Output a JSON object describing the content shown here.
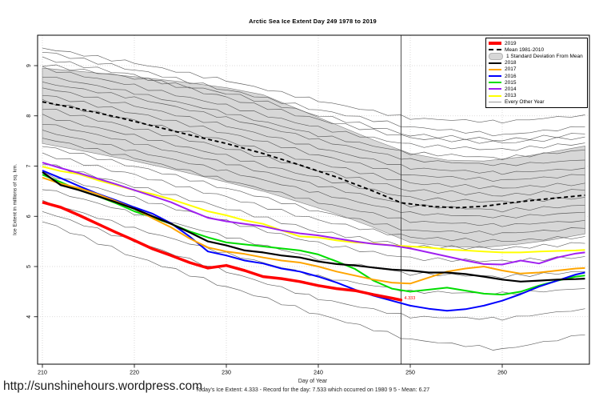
{
  "footer": {
    "url": "http://sunshinehours.wordpress.com"
  },
  "chart_data": {
    "type": "line",
    "title": "Arctic Sea Ice Extent Day 249 1978 to 2019",
    "xlabel": "Day of Year",
    "ylabel": "Ice Extent in millions of sq. km.",
    "subtitle": "Today's Ice Extent: 4.333  - Record for the day: 7.533 which occurred on 1980 9 5  - Mean: 6.27",
    "today_value": 4.333,
    "record_value": 7.533,
    "record_date": "1980 9 5",
    "mean_value": 6.27,
    "marker_day": 249,
    "xticks": [
      210,
      220,
      230,
      240,
      250,
      260
    ],
    "yticks": [
      4,
      5,
      6,
      7,
      8,
      9
    ],
    "xlim": [
      209.3,
      269.5
    ],
    "ylim": [
      3.0,
      9.6
    ],
    "grid": "dotted",
    "legend_position": "top-right",
    "annotation": {
      "text": "4.333",
      "x": 249,
      "y": 4.333,
      "color": "#ff0000"
    },
    "band": {
      "name": "1 Standard Deviation From Mean",
      "fill": "#d7d7d7",
      "edge": "#7f7f7f",
      "days": [
        210,
        215,
        220,
        225,
        230,
        234,
        238,
        242,
        246,
        250,
        254,
        258,
        262,
        265,
        269
      ],
      "upper": [
        8.95,
        8.87,
        8.78,
        8.68,
        8.56,
        8.42,
        8.12,
        7.82,
        7.52,
        7.25,
        7.12,
        7.1,
        7.18,
        7.27,
        7.4
      ],
      "lower": [
        7.45,
        7.28,
        7.1,
        6.9,
        6.68,
        6.5,
        6.28,
        6.05,
        5.78,
        5.48,
        5.4,
        5.38,
        5.45,
        5.52,
        5.65
      ]
    },
    "mean_series": {
      "name": "Mean 1981-2010",
      "color": "#000000",
      "style": "dashed",
      "days": [
        210,
        214,
        218,
        222,
        226,
        230,
        234,
        238,
        242,
        246,
        249,
        252,
        255,
        258,
        261,
        264,
        269
      ],
      "values": [
        8.28,
        8.14,
        7.98,
        7.8,
        7.62,
        7.45,
        7.25,
        7.02,
        6.78,
        6.5,
        6.27,
        6.2,
        6.17,
        6.2,
        6.27,
        6.33,
        6.42
      ]
    },
    "series": [
      {
        "name": "2013",
        "color": "#ffff00",
        "width": 2,
        "days": [
          210,
          212,
          214,
          216,
          218,
          220,
          222,
          224,
          226,
          228,
          230,
          232,
          234,
          236,
          238,
          240,
          242,
          244,
          246,
          248,
          250,
          252,
          254,
          256,
          258,
          260,
          262,
          264,
          266,
          268,
          269
        ],
        "values": [
          6.99,
          6.9,
          6.84,
          6.72,
          6.62,
          6.52,
          6.44,
          6.34,
          6.22,
          6.1,
          6.02,
          5.92,
          5.85,
          5.72,
          5.6,
          5.58,
          5.52,
          5.48,
          5.46,
          5.42,
          5.4,
          5.38,
          5.34,
          5.32,
          5.3,
          5.28,
          5.28,
          5.3,
          5.31,
          5.32,
          5.33
        ]
      },
      {
        "name": "2014",
        "color": "#a020f0",
        "width": 2,
        "days": [
          210,
          212,
          214,
          216,
          218,
          220,
          222,
          224,
          226,
          228,
          230,
          232,
          234,
          236,
          238,
          240,
          242,
          244,
          246,
          248,
          250,
          252,
          254,
          256,
          258,
          260,
          262,
          264,
          266,
          268,
          269
        ],
        "values": [
          7.07,
          6.96,
          6.86,
          6.75,
          6.64,
          6.52,
          6.4,
          6.28,
          6.12,
          5.97,
          5.9,
          5.85,
          5.8,
          5.72,
          5.66,
          5.62,
          5.56,
          5.5,
          5.45,
          5.42,
          5.36,
          5.28,
          5.2,
          5.12,
          5.05,
          5.04,
          5.12,
          5.06,
          5.18,
          5.26,
          5.28
        ]
      },
      {
        "name": "2015",
        "color": "#00dd00",
        "width": 2,
        "days": [
          210,
          212,
          214,
          216,
          218,
          220,
          222,
          224,
          226,
          228,
          230,
          232,
          234,
          236,
          238,
          240,
          242,
          244,
          246,
          248,
          250,
          252,
          254,
          256,
          258,
          260,
          262,
          264,
          266,
          268,
          269
        ],
        "values": [
          6.83,
          6.68,
          6.52,
          6.4,
          6.26,
          6.1,
          5.98,
          5.85,
          5.7,
          5.58,
          5.48,
          5.44,
          5.4,
          5.36,
          5.32,
          5.24,
          5.1,
          4.95,
          4.72,
          4.56,
          4.5,
          4.54,
          4.58,
          4.52,
          4.46,
          4.44,
          4.5,
          4.62,
          4.72,
          4.8,
          4.82
        ]
      },
      {
        "name": "2016",
        "color": "#0000ff",
        "width": 2,
        "days": [
          210,
          212,
          214,
          216,
          218,
          220,
          222,
          224,
          226,
          228,
          230,
          232,
          234,
          236,
          238,
          240,
          242,
          244,
          246,
          248,
          250,
          252,
          254,
          256,
          258,
          260,
          262,
          264,
          266,
          268,
          269
        ],
        "values": [
          6.91,
          6.76,
          6.6,
          6.45,
          6.32,
          6.18,
          6.05,
          5.86,
          5.6,
          5.3,
          5.22,
          5.12,
          5.06,
          4.96,
          4.9,
          4.8,
          4.68,
          4.54,
          4.42,
          4.32,
          4.22,
          4.16,
          4.12,
          4.15,
          4.22,
          4.32,
          4.45,
          4.6,
          4.72,
          4.84,
          4.88
        ]
      },
      {
        "name": "2017",
        "color": "#ffa500",
        "width": 2,
        "days": [
          210,
          212,
          214,
          216,
          218,
          220,
          222,
          224,
          226,
          228,
          230,
          232,
          234,
          236,
          238,
          240,
          242,
          244,
          246,
          248,
          250,
          252,
          254,
          256,
          258,
          260,
          262,
          264,
          266,
          268,
          269
        ],
        "values": [
          6.77,
          6.65,
          6.56,
          6.44,
          6.3,
          6.15,
          5.96,
          5.78,
          5.56,
          5.38,
          5.3,
          5.25,
          5.18,
          5.12,
          5.08,
          5.0,
          4.9,
          4.82,
          4.74,
          4.68,
          4.66,
          4.78,
          4.9,
          4.96,
          5.0,
          4.92,
          4.86,
          4.88,
          4.92,
          4.96,
          4.97
        ]
      },
      {
        "name": "2018",
        "color": "#000000",
        "width": 2.2,
        "days": [
          210,
          212,
          214,
          216,
          218,
          220,
          222,
          224,
          226,
          228,
          230,
          232,
          234,
          236,
          238,
          240,
          242,
          244,
          246,
          248,
          250,
          252,
          254,
          256,
          258,
          260,
          262,
          264,
          266,
          268,
          269
        ],
        "values": [
          6.88,
          6.62,
          6.52,
          6.4,
          6.28,
          6.15,
          6.0,
          5.85,
          5.68,
          5.5,
          5.42,
          5.32,
          5.28,
          5.22,
          5.18,
          5.1,
          5.05,
          5.02,
          4.98,
          4.94,
          4.92,
          4.88,
          4.88,
          4.85,
          4.8,
          4.74,
          4.7,
          4.72,
          4.74,
          4.75,
          4.76
        ]
      },
      {
        "name": "2019",
        "color": "#ff0000",
        "width": 3.5,
        "days": [
          210,
          212,
          214,
          216,
          218,
          220,
          222,
          224,
          226,
          228,
          230,
          232,
          234,
          236,
          238,
          240,
          242,
          244,
          246,
          248,
          249
        ],
        "values": [
          6.28,
          6.18,
          6.02,
          5.85,
          5.68,
          5.52,
          5.35,
          5.22,
          5.08,
          4.97,
          5.02,
          4.92,
          4.8,
          4.76,
          4.7,
          4.62,
          4.56,
          4.52,
          4.44,
          4.37,
          4.333
        ]
      }
    ],
    "background_years": {
      "name": "Every Other Year",
      "color": "#4f4f4f",
      "width": 0.65,
      "days": [
        210,
        220,
        230,
        240,
        250,
        260,
        269
      ],
      "lines": [
        [
          9.35,
          9.05,
          8.7,
          8.3,
          7.95,
          7.88,
          8.02
        ],
        [
          9.28,
          8.92,
          8.52,
          8.12,
          7.78,
          7.62,
          7.78
        ],
        [
          9.15,
          8.8,
          8.36,
          7.92,
          7.56,
          7.46,
          7.58
        ],
        [
          9.02,
          8.76,
          8.46,
          8.02,
          7.62,
          7.52,
          7.64
        ],
        [
          8.95,
          8.6,
          8.2,
          7.76,
          7.42,
          7.32,
          7.46
        ],
        [
          8.8,
          8.46,
          8.06,
          7.62,
          7.26,
          7.16,
          7.32
        ],
        [
          8.66,
          8.36,
          7.96,
          7.52,
          7.12,
          7.02,
          7.12
        ],
        [
          8.56,
          8.2,
          7.8,
          7.36,
          6.96,
          6.86,
          6.96
        ],
        [
          8.42,
          8.06,
          7.66,
          7.22,
          6.82,
          6.72,
          6.82
        ],
        [
          8.3,
          7.9,
          7.5,
          7.06,
          6.66,
          6.56,
          6.66
        ],
        [
          8.16,
          7.76,
          7.36,
          6.92,
          6.52,
          6.42,
          6.52
        ],
        [
          8.0,
          7.6,
          7.2,
          6.76,
          6.36,
          6.28,
          6.38
        ],
        [
          7.86,
          7.46,
          7.06,
          6.62,
          6.22,
          6.12,
          6.22
        ],
        [
          7.7,
          7.3,
          6.9,
          6.46,
          6.06,
          5.98,
          6.08
        ],
        [
          7.56,
          7.16,
          6.72,
          6.28,
          5.9,
          5.82,
          5.92
        ],
        [
          7.4,
          7.0,
          6.56,
          6.1,
          5.72,
          5.66,
          5.76
        ],
        [
          7.24,
          6.82,
          6.38,
          5.92,
          5.58,
          5.5,
          5.6
        ],
        [
          7.06,
          6.6,
          6.16,
          5.7,
          5.4,
          5.36,
          5.46
        ],
        [
          6.86,
          6.36,
          5.9,
          5.46,
          5.16,
          5.1,
          5.2
        ],
        [
          6.56,
          6.06,
          5.6,
          5.16,
          4.86,
          4.8,
          4.9
        ],
        [
          6.3,
          5.76,
          5.26,
          4.8,
          4.5,
          4.46,
          4.56
        ],
        [
          6.1,
          5.5,
          4.9,
          4.36,
          4.0,
          3.96,
          4.16
        ],
        [
          5.9,
          5.2,
          4.6,
          4.05,
          3.55,
          3.35,
          3.64
        ]
      ]
    },
    "legend": {
      "items": [
        {
          "label": "2019",
          "swatch": "line-thick",
          "color": "#ff0000"
        },
        {
          "label": "Mean 1981-2010",
          "swatch": "line-dashed",
          "color": "#000000"
        },
        {
          "label": "1 Standard Deviation From Mean",
          "swatch": "band",
          "color": "#d7d7d7"
        },
        {
          "label": "2018",
          "swatch": "line",
          "color": "#000000"
        },
        {
          "label": "2017",
          "swatch": "line",
          "color": "#ffa500"
        },
        {
          "label": "2016",
          "swatch": "line",
          "color": "#0000ff"
        },
        {
          "label": "2015",
          "swatch": "line",
          "color": "#00dd00"
        },
        {
          "label": "2014",
          "swatch": "line",
          "color": "#a020f0"
        },
        {
          "label": "2013",
          "swatch": "line",
          "color": "#ffff00"
        },
        {
          "label": "Every Other Year",
          "swatch": "line-thin",
          "color": "#9a9a9a"
        }
      ]
    }
  }
}
